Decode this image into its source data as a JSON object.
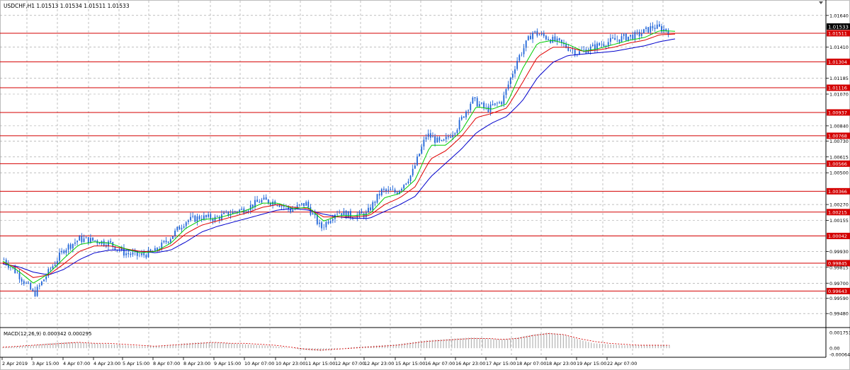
{
  "window": {
    "title": "USDCHF,H1  1.01513 1.01534 1.01511 1.01533",
    "symbol": "USDCHF",
    "timeframe": "H1"
  },
  "price_scale": {
    "tick_labels": [
      "1.01640",
      "1.01410",
      "1.01185",
      "1.01070",
      "1.00840",
      "1.00730",
      "1.00615",
      "1.00500",
      "1.00270",
      "1.00155",
      "0.99930",
      "0.99815",
      "0.99700",
      "0.99590",
      "0.99480"
    ],
    "current_price": "1.01533"
  },
  "horizontal_levels": [
    "1.01511",
    "1.01304",
    "1.01116",
    "1.00937",
    "1.00768",
    "1.00566",
    "1.00366",
    "1.00215",
    "1.00042",
    "0.99845",
    "0.99643"
  ],
  "macd": {
    "title": "MACD(12,26,9) 0.000342 0.000295",
    "tick_labels": [
      "0.001751",
      "0.00",
      "-0.000641"
    ]
  },
  "time_axis": {
    "labels": [
      "2 Apr 2019",
      "3 Apr 15:00",
      "4 Apr 07:00",
      "4 Apr 23:00",
      "5 Apr 15:00",
      "8 Apr 07:00",
      "8 Apr 23:00",
      "9 Apr 15:00",
      "10 Apr 07:00",
      "10 Apr 23:00",
      "11 Apr 15:00",
      "12 Apr 07:00",
      "12 Apr 23:00",
      "15 Apr 15:00",
      "16 Apr 07:00",
      "16 Apr 23:00",
      "17 Apr 15:00",
      "18 Apr 07:00",
      "18 Apr 23:00",
      "19 Apr 15:00",
      "22 Apr 07:00"
    ]
  },
  "colors": {
    "background": "#ffffff",
    "candles": "#1e64d8",
    "ma_fast": "#00cc00",
    "ma_mid": "#e00000",
    "ma_slow": "#0000cc",
    "level_line": "#d40000",
    "level_label_bg": "#d40000",
    "level_label_text": "#ffffff",
    "grid": "#9a9a9a",
    "macd_hist": "#b4b4b4",
    "macd_signal": "#d40000"
  },
  "chart_data": {
    "type": "candlestick",
    "symbol": "USDCHF",
    "timeframe": "H1",
    "ylim": [
      0.9944,
      1.0168
    ],
    "grid": true,
    "x": [
      "2 Apr 2019",
      "3 Apr 15:00",
      "4 Apr 07:00",
      "4 Apr 23:00",
      "5 Apr 15:00",
      "8 Apr 07:00",
      "8 Apr 23:00",
      "9 Apr 15:00",
      "10 Apr 07:00",
      "10 Apr 23:00",
      "11 Apr 15:00",
      "12 Apr 07:00",
      "12 Apr 23:00",
      "15 Apr 15:00",
      "16 Apr 07:00",
      "16 Apr 23:00",
      "17 Apr 15:00",
      "18 Apr 07:00",
      "18 Apr 23:00",
      "19 Apr 15:00",
      "22 Apr 07:00"
    ],
    "close_path": [
      0.9987,
      0.9976,
      0.9962,
      0.9979,
      0.9995,
      1.0002,
      1.0001,
      0.9999,
      0.9992,
      0.999,
      0.9993,
      1.0003,
      1.0015,
      1.0018,
      1.0017,
      1.0021,
      1.0024,
      1.003,
      1.0029,
      1.0023,
      1.0028,
      1.001,
      1.0022,
      1.0019,
      1.002,
      1.0037,
      1.0036,
      1.0049,
      1.0078,
      1.0071,
      1.0083,
      1.0103,
      1.0096,
      1.0102,
      1.0132,
      1.0152,
      1.0148,
      1.0143,
      1.0137,
      1.0141,
      1.0145,
      1.0148,
      1.015,
      1.0156,
      1.01533
    ],
    "ma_fast": [
      0.9986,
      0.9979,
      0.997,
      0.9977,
      0.9988,
      0.9998,
      1.0,
      0.9999,
      0.9995,
      0.9992,
      0.9993,
      0.9999,
      1.001,
      1.0016,
      1.0017,
      1.002,
      1.0023,
      1.0028,
      1.0028,
      1.0024,
      1.0025,
      1.0015,
      1.0019,
      1.0019,
      1.002,
      1.0032,
      1.0035,
      1.0045,
      1.007,
      1.007,
      1.008,
      1.0098,
      1.0096,
      1.01,
      1.0125,
      1.0144,
      1.0146,
      1.0143,
      1.0138,
      1.014,
      1.0143,
      1.0146,
      1.0148,
      1.0153,
      1.01525
    ],
    "ma_mid": [
      0.9985,
      0.9981,
      0.9974,
      0.9976,
      0.9984,
      0.9993,
      0.9997,
      0.9997,
      0.9995,
      0.9993,
      0.9993,
      0.9997,
      1.0006,
      1.0012,
      1.0015,
      1.0018,
      1.0021,
      1.0025,
      1.0027,
      1.0025,
      1.0024,
      1.0018,
      1.0018,
      1.0018,
      1.0019,
      1.0027,
      1.0032,
      1.004,
      1.006,
      1.0066,
      1.0076,
      1.009,
      1.0093,
      1.0097,
      1.0115,
      1.0134,
      1.0141,
      1.0141,
      1.0138,
      1.0139,
      1.0141,
      1.0144,
      1.0146,
      1.015,
      1.01505
    ],
    "ma_slow": [
      0.9984,
      0.9982,
      0.9978,
      0.9976,
      0.998,
      0.9987,
      0.9992,
      0.9994,
      0.9994,
      0.9993,
      0.9992,
      0.9994,
      1.0,
      1.0007,
      1.0011,
      1.0014,
      1.0017,
      1.002,
      1.0023,
      1.0024,
      1.0023,
      1.002,
      1.0018,
      1.0017,
      1.0017,
      1.0022,
      1.0027,
      1.0033,
      1.0047,
      1.0057,
      1.0067,
      1.0079,
      1.0086,
      1.0091,
      1.0102,
      1.0119,
      1.013,
      1.0135,
      1.0136,
      1.0137,
      1.0138,
      1.014,
      1.0142,
      1.0145,
      1.0147
    ],
    "horizontal_levels": [
      1.01511,
      1.01304,
      1.01116,
      1.00937,
      1.00768,
      1.00566,
      1.00366,
      1.00215,
      1.00042,
      0.99845,
      0.99643
    ],
    "macd": {
      "title": "MACD(12,26,9) 0.000342 0.000295",
      "ylim": [
        -0.000641,
        0.001751
      ],
      "histogram": [
        0.0001,
        0.0002,
        0.0003,
        0.0005,
        0.0006,
        0.0006,
        0.0005,
        0.0004,
        0.0003,
        0.0002,
        0.0002,
        0.0003,
        0.0005,
        0.0006,
        0.0006,
        0.0005,
        0.0004,
        0.0003,
        0.0002,
        0.0,
        -0.0002,
        -0.0003,
        -0.0001,
        0.0001,
        0.0002,
        0.0003,
        0.0004,
        0.0006,
        0.0008,
        0.0009,
        0.001,
        0.0011,
        0.001,
        0.0009,
        0.0011,
        0.0014,
        0.0016,
        0.0014,
        0.0009,
        0.0005,
        0.0004,
        0.0003,
        0.0003,
        0.0003,
        0.0003
      ],
      "signal": [
        0.0001,
        0.0002,
        0.0003,
        0.0004,
        0.0005,
        0.0006,
        0.0005,
        0.0005,
        0.0004,
        0.0003,
        0.0002,
        0.0003,
        0.0004,
        0.0005,
        0.0006,
        0.0005,
        0.0005,
        0.0004,
        0.0003,
        0.0001,
        -0.0001,
        -0.0002,
        -0.0001,
        0.0,
        0.0001,
        0.0002,
        0.0003,
        0.0005,
        0.0007,
        0.0008,
        0.0009,
        0.001,
        0.001,
        0.0009,
        0.001,
        0.0013,
        0.0015,
        0.0014,
        0.001,
        0.0007,
        0.0005,
        0.0004,
        0.0003,
        0.0003,
        0.000295
      ]
    }
  }
}
